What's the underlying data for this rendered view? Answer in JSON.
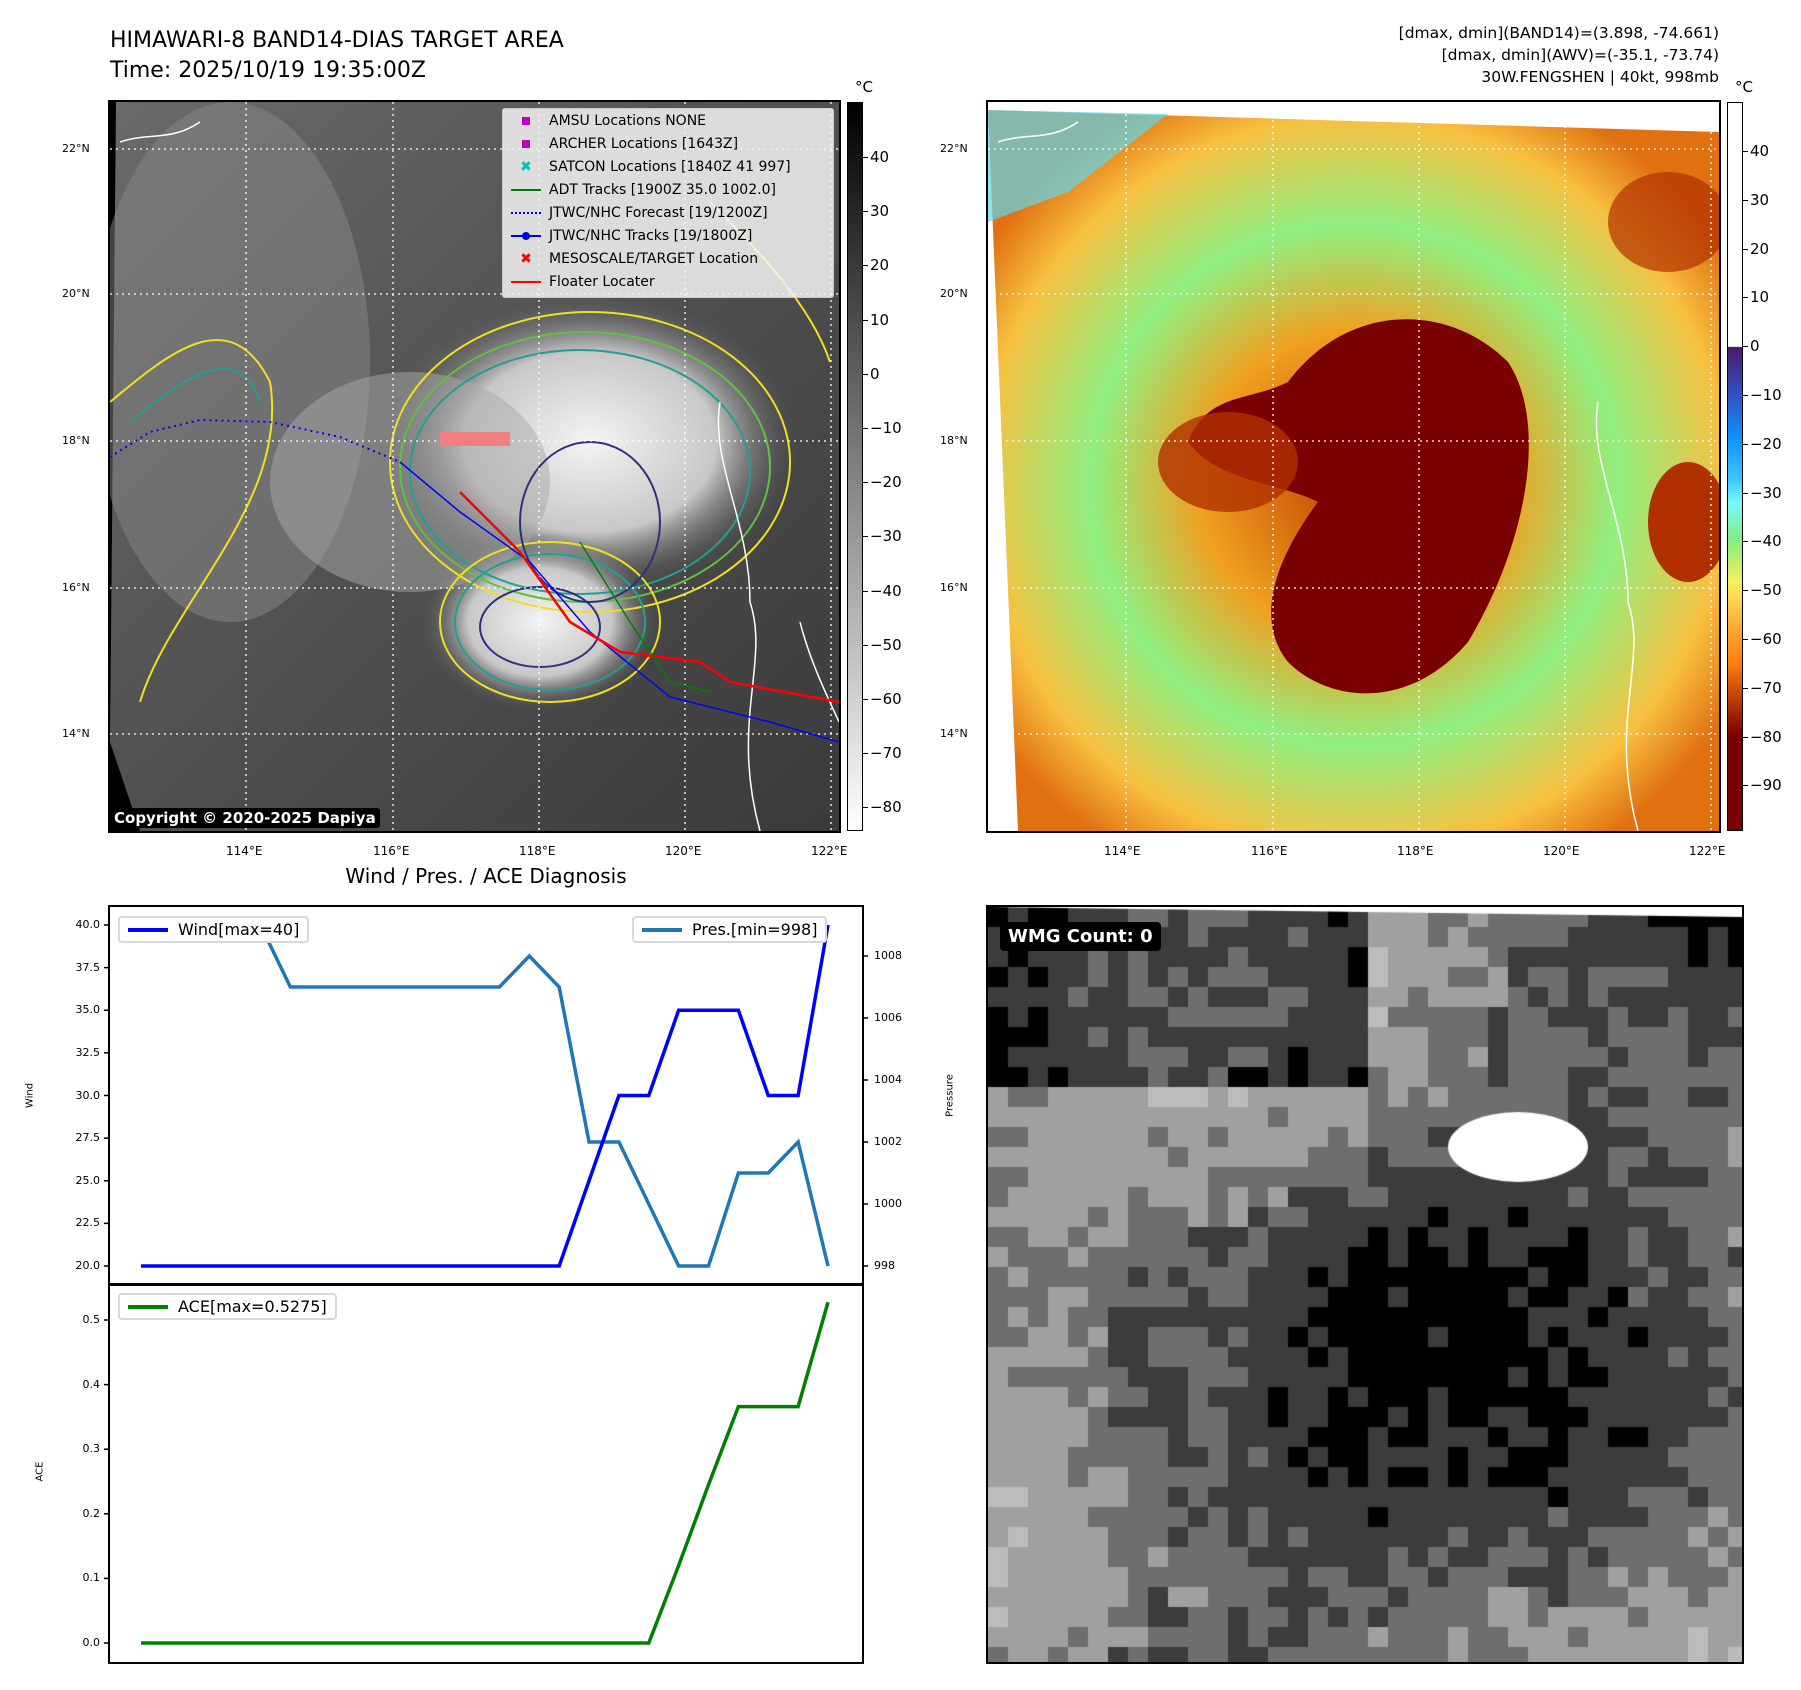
{
  "header": {
    "title_line1": "HIMAWARI-8 BAND14-DIAS TARGET AREA",
    "title_line2": "Time: 2025/10/19 19:35:00Z",
    "info_line1": "[dmax, dmin](BAND14)=(3.898, -74.661)",
    "info_line2": "[dmax, dmin](AWV)=(-35.1, -73.74)",
    "info_line3": "30W.FENGSHEN | 40kt, 998mb"
  },
  "map": {
    "lat_labels": [
      "22°N",
      "20°N",
      "18°N",
      "16°N",
      "14°N"
    ],
    "lon_labels": [
      "114°E",
      "116°E",
      "118°E",
      "120°E",
      "122°E"
    ],
    "copyright": "Copyright © 2020-2025 Dapiya",
    "legend": [
      {
        "label": "AMSU Locations NONE",
        "marker": "square",
        "color": "#c000c0"
      },
      {
        "label": "ARCHER Locations [1643Z]",
        "marker": "square",
        "color": "#c000c0"
      },
      {
        "label": "SATCON Locations [1840Z 41 997]",
        "marker": "x",
        "color": "#00c0c0"
      },
      {
        "label": "ADT Tracks [1900Z 35.0 1002.0]",
        "marker": "line",
        "color": "#008000"
      },
      {
        "label": "JTWC/NHC Forecast [19/1200Z]",
        "marker": "dotted",
        "color": "#0000ff"
      },
      {
        "label": "JTWC/NHC Tracks [19/1800Z]",
        "marker": "line-dot",
        "color": "#0000ff"
      },
      {
        "label": "MESOSCALE/TARGET Location",
        "marker": "x",
        "color": "#ff0000"
      },
      {
        "label": "Floater Locater",
        "marker": "line",
        "color": "#ff0000"
      }
    ]
  },
  "colorbar_left": {
    "unit": "°C",
    "ticks": [
      "40",
      "30",
      "20",
      "10",
      "0",
      "−10",
      "−20",
      "−30",
      "−40",
      "−50",
      "−60",
      "−70",
      "−80"
    ]
  },
  "colorbar_right": {
    "unit": "°C",
    "ticks": [
      "40",
      "30",
      "20",
      "10",
      "0",
      "−10",
      "−20",
      "−30",
      "−40",
      "−50",
      "−60",
      "−70",
      "−80",
      "−90"
    ]
  },
  "wmg": {
    "label": "WMG Count: 0"
  },
  "chart_data": [
    {
      "type": "line",
      "title": "Wind / Pres. / ACE Diagnosis",
      "ylabel": "Wind",
      "y2label": "Pressure",
      "ylim": [
        19,
        41
      ],
      "y2lim": [
        997.6,
        1009.6
      ],
      "yticks": [
        "20.0",
        "22.5",
        "25.0",
        "27.5",
        "30.0",
        "32.5",
        "35.0",
        "37.5",
        "40.0"
      ],
      "y2ticks": [
        "998",
        "1000",
        "1002",
        "1004",
        "1006",
        "1008"
      ],
      "series": [
        {
          "name": "Wind[max=40]",
          "color": "#0000ff",
          "values": [
            20,
            20,
            20,
            20,
            20,
            20,
            20,
            20,
            20,
            20,
            20,
            20,
            20,
            20,
            20,
            25,
            30,
            30,
            35,
            35,
            35,
            30,
            30,
            40
          ]
        },
        {
          "name": "Pres.[min=998]",
          "color": "#1f77b4",
          "axis": "right",
          "values": [
            1009,
            1009,
            1009,
            1009,
            1009,
            1007,
            1007,
            1007,
            1007,
            1007,
            1007,
            1007,
            1007,
            1008,
            1007,
            1002,
            1002,
            1000,
            998,
            998,
            1001,
            1001,
            1002,
            998
          ]
        }
      ]
    },
    {
      "type": "line",
      "ylabel": "ACE",
      "ylim": [
        -0.02,
        0.56
      ],
      "yticks": [
        "0.0",
        "0.1",
        "0.2",
        "0.3",
        "0.4",
        "0.5"
      ],
      "series": [
        {
          "name": "ACE[max=0.5275]",
          "color": "#008000",
          "values": [
            0,
            0,
            0,
            0,
            0,
            0,
            0,
            0,
            0,
            0,
            0,
            0,
            0,
            0,
            0,
            0,
            0,
            0,
            0.12,
            0.245,
            0.366,
            0.366,
            0.366,
            0.5275
          ]
        }
      ]
    }
  ]
}
